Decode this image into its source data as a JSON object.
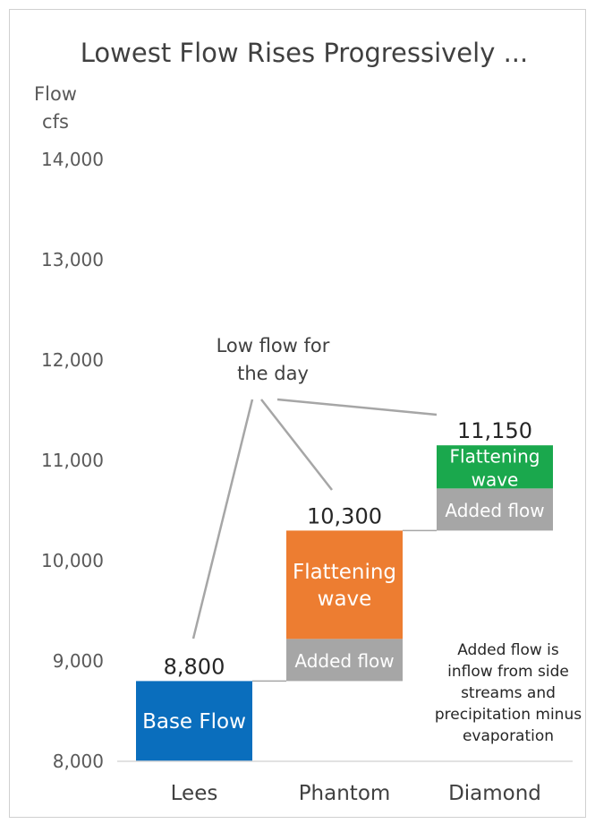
{
  "chart_data": {
    "type": "bar",
    "title": "Lowest Flow Rises Progressively ...",
    "ylabel": [
      "Flow",
      "cfs"
    ],
    "ylim": [
      8000,
      14000
    ],
    "yticks": [
      8000,
      9000,
      10000,
      11000,
      12000,
      13000,
      14000
    ],
    "ytick_labels": [
      "8,000",
      "9,000",
      "10,000",
      "11,000",
      "12,000",
      "13,000",
      "14,000"
    ],
    "categories": [
      "Lees",
      "Phantom",
      "Diamond"
    ],
    "segments": [
      {
        "category": "Lees",
        "bottom": 8000,
        "top": 8800,
        "label": "Base Flow",
        "color": "#0a6ebd"
      },
      {
        "category": "Phantom",
        "bottom": 8800,
        "top": 9220,
        "label": "Added flow",
        "color": "#a6a6a6"
      },
      {
        "category": "Phantom",
        "bottom": 9220,
        "top": 10300,
        "label": [
          "Flattening",
          "wave"
        ],
        "color": "#ed7d31"
      },
      {
        "category": "Diamond",
        "bottom": 10300,
        "top": 10720,
        "label": "Added flow",
        "color": "#a6a6a6"
      },
      {
        "category": "Diamond",
        "bottom": 10720,
        "top": 11150,
        "label": [
          "Flattening",
          "wave"
        ],
        "color": "#1aa84d"
      }
    ],
    "totals": [
      {
        "category": "Lees",
        "value": 8800,
        "label": "8,800"
      },
      {
        "category": "Phantom",
        "value": 10300,
        "label": "10,300"
      },
      {
        "category": "Diamond",
        "value": 11150,
        "label": "11,150"
      }
    ],
    "callout": [
      "Low flow for",
      "the day"
    ],
    "note": [
      "Added flow is",
      "inflow from side",
      "streams and",
      "precipitation minus",
      "evaporation"
    ],
    "grid": false,
    "legend": "none"
  }
}
